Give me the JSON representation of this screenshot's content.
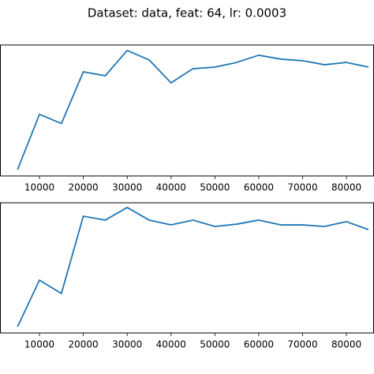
{
  "title": "Dataset: data, feat: 64, lr: 0.0003",
  "chart_data": [
    {
      "type": "line",
      "x": [
        5000,
        10000,
        15000,
        20000,
        25000,
        30000,
        35000,
        40000,
        45000,
        50000,
        55000,
        60000,
        65000,
        70000,
        75000,
        80000,
        85000
      ],
      "values": [
        0.048,
        0.47,
        0.4,
        0.795,
        0.765,
        0.958,
        0.886,
        0.711,
        0.819,
        0.831,
        0.867,
        0.922,
        0.892,
        0.88,
        0.849,
        0.867,
        0.831
      ],
      "color": "#1f77b4",
      "xlim": [
        1000,
        86100
      ],
      "ylim": [
        0,
        1
      ],
      "xticks": [
        10000,
        20000,
        30000,
        40000,
        50000,
        60000,
        70000,
        80000
      ]
    },
    {
      "type": "line",
      "x": [
        5000,
        10000,
        15000,
        20000,
        25000,
        30000,
        35000,
        40000,
        45000,
        50000,
        55000,
        60000,
        65000,
        70000,
        75000,
        80000,
        85000
      ],
      "values": [
        0.048,
        0.406,
        0.303,
        0.897,
        0.867,
        0.964,
        0.867,
        0.83,
        0.867,
        0.818,
        0.836,
        0.867,
        0.83,
        0.83,
        0.818,
        0.855,
        0.794
      ],
      "color": "#1f77b4",
      "xlim": [
        1000,
        86100
      ],
      "ylim": [
        0,
        1
      ],
      "xticks": [
        10000,
        20000,
        30000,
        40000,
        50000,
        60000,
        70000,
        80000
      ]
    }
  ]
}
